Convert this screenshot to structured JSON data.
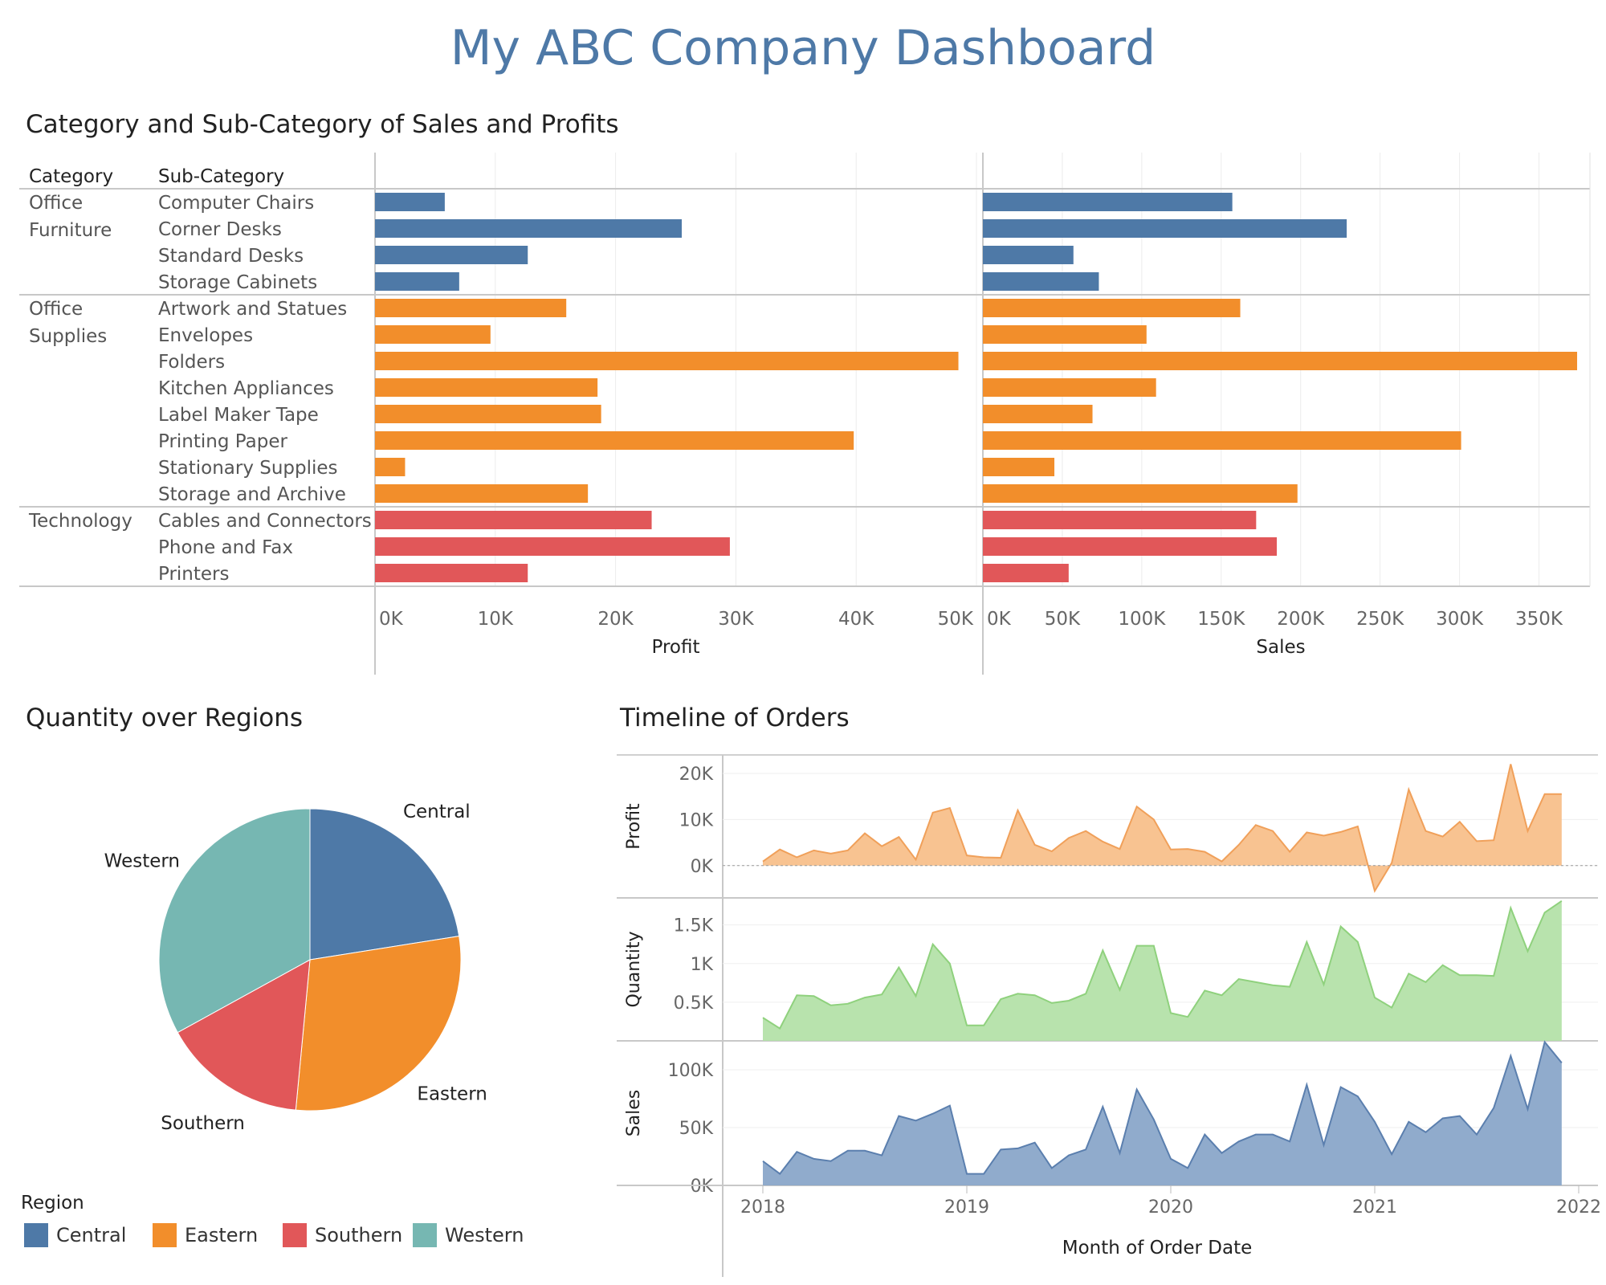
{
  "title": "My ABC Company Dashboard",
  "colors": {
    "title": "#4e79a7",
    "Office Furniture": "#4e79a7",
    "Office Supplies": "#f28e2b",
    "Technology": "#e15759",
    "Central": "#4e79a7",
    "Eastern": "#f28e2b",
    "Southern": "#e15759",
    "Western": "#76b7b2",
    "profit_area": "#f8c08b",
    "quantity_area": "#b4e2a9",
    "sales_area": "#8aa6c9"
  },
  "bars_section": {
    "title": "Category and Sub-Category of Sales and Profits",
    "col_category": "Category",
    "col_subcategory": "Sub-Category"
  },
  "pie_section": {
    "title": "Quantity over Regions"
  },
  "timeline_section": {
    "title": "Timeline of Orders"
  },
  "legend": {
    "title": "Region",
    "items": [
      "Central",
      "Eastern",
      "Southern",
      "Western"
    ]
  },
  "chart_data": [
    {
      "type": "bar",
      "name": "Category and Sub-Category of Sales and Profits",
      "groups": [
        {
          "category": "Office Furniture",
          "category_lines": [
            "Office",
            "Furniture"
          ],
          "items": [
            {
              "sub": "Computer Chairs",
              "profit": 5800,
              "sales": 157000
            },
            {
              "sub": "Corner Desks",
              "profit": 25500,
              "sales": 229000
            },
            {
              "sub": "Standard Desks",
              "profit": 12700,
              "sales": 57000
            },
            {
              "sub": "Storage Cabinets",
              "profit": 7000,
              "sales": 73000
            }
          ]
        },
        {
          "category": "Office Supplies",
          "category_lines": [
            "Office",
            "Supplies"
          ],
          "items": [
            {
              "sub": "Artwork and Statues",
              "profit": 15900,
              "sales": 162000
            },
            {
              "sub": "Envelopes",
              "profit": 9600,
              "sales": 103000
            },
            {
              "sub": "Folders",
              "profit": 48500,
              "sales": 374000
            },
            {
              "sub": "Kitchen Appliances",
              "profit": 18500,
              "sales": 109000
            },
            {
              "sub": "Label Maker Tape",
              "profit": 18800,
              "sales": 69000
            },
            {
              "sub": "Printing Paper",
              "profit": 39800,
              "sales": 301000
            },
            {
              "sub": "Stationary Supplies",
              "profit": 2500,
              "sales": 45000
            },
            {
              "sub": "Storage and Archive",
              "profit": 17700,
              "sales": 198000
            }
          ]
        },
        {
          "category": "Technology",
          "category_lines": [
            "Technology"
          ],
          "items": [
            {
              "sub": "Cables and Connectors",
              "profit": 23000,
              "sales": 172000
            },
            {
              "sub": "Phone and Fax",
              "profit": 29500,
              "sales": 185000
            },
            {
              "sub": "Printers",
              "profit": 12700,
              "sales": 54000
            }
          ]
        }
      ],
      "panels": [
        {
          "xlabel": "Profit",
          "xlim": [
            0,
            50000
          ],
          "ticks": [
            0,
            10000,
            20000,
            30000,
            40000,
            50000
          ],
          "tick_labels": [
            "0K",
            "10K",
            "20K",
            "30K",
            "40K",
            "50K"
          ]
        },
        {
          "xlabel": "Sales",
          "xlim": [
            0,
            375000
          ],
          "ticks": [
            0,
            50000,
            100000,
            150000,
            200000,
            250000,
            300000,
            350000
          ],
          "tick_labels": [
            "0K",
            "50K",
            "100K",
            "150K",
            "200K",
            "250K",
            "300K",
            "350K"
          ]
        }
      ]
    },
    {
      "type": "pie",
      "name": "Quantity over Regions",
      "slices": [
        {
          "label": "Central",
          "value": 22.5
        },
        {
          "label": "Eastern",
          "value": 29.0
        },
        {
          "label": "Southern",
          "value": 15.5
        },
        {
          "label": "Western",
          "value": 33.0
        }
      ]
    },
    {
      "type": "area",
      "name": "Timeline of Orders",
      "xlabel": "Month of Order Date",
      "x_tick_labels": [
        "2018",
        "2019",
        "2020",
        "2021",
        "2022"
      ],
      "x_range": [
        "2018-01",
        "2022-01"
      ],
      "months": [
        "2018-01",
        "2018-02",
        "2018-03",
        "2018-04",
        "2018-05",
        "2018-06",
        "2018-07",
        "2018-08",
        "2018-09",
        "2018-10",
        "2018-11",
        "2018-12",
        "2019-01",
        "2019-02",
        "2019-03",
        "2019-04",
        "2019-05",
        "2019-06",
        "2019-07",
        "2019-08",
        "2019-09",
        "2019-10",
        "2019-11",
        "2019-12",
        "2020-01",
        "2020-02",
        "2020-03",
        "2020-04",
        "2020-05",
        "2020-06",
        "2020-07",
        "2020-08",
        "2020-09",
        "2020-10",
        "2020-11",
        "2020-12",
        "2021-01",
        "2021-02",
        "2021-03",
        "2021-04",
        "2021-05",
        "2021-06",
        "2021-07",
        "2021-08",
        "2021-09",
        "2021-10",
        "2021-11",
        "2021-12"
      ],
      "series": [
        {
          "name": "Profit",
          "ylabel": "Profit",
          "ylim": [
            -7000,
            24000
          ],
          "ticks": [
            0,
            10000,
            20000
          ],
          "tick_labels": [
            "0K",
            "10K",
            "20K"
          ],
          "zero_line": true,
          "values": [
            900,
            3500,
            1800,
            3300,
            2600,
            3300,
            7000,
            4200,
            6200,
            1300,
            11500,
            12500,
            2200,
            1800,
            1700,
            12000,
            4500,
            3100,
            6000,
            7500,
            5200,
            3600,
            12800,
            10000,
            3500,
            3600,
            3000,
            900,
            4500,
            8800,
            7500,
            3000,
            7200,
            6500,
            7300,
            8500,
            -5500,
            600,
            16500,
            7500,
            6300,
            9500,
            5300,
            5500,
            22000,
            7500,
            15500,
            15500
          ]
        },
        {
          "name": "Quantity",
          "ylabel": "Quantity",
          "ylim": [
            0,
            1850
          ],
          "ticks": [
            500,
            1000,
            1500
          ],
          "tick_labels": [
            "0.5K",
            "1K",
            "1.5K"
          ],
          "values": [
            300,
            160,
            590,
            580,
            460,
            480,
            560,
            600,
            950,
            580,
            1250,
            1000,
            200,
            200,
            540,
            610,
            590,
            490,
            520,
            610,
            1170,
            660,
            1230,
            1230,
            360,
            310,
            650,
            590,
            800,
            760,
            720,
            700,
            1280,
            730,
            1480,
            1280,
            560,
            430,
            870,
            760,
            980,
            850,
            850,
            840,
            1720,
            1160,
            1660,
            1810
          ]
        },
        {
          "name": "Sales",
          "ylabel": "Sales",
          "ylim": [
            0,
            125000
          ],
          "ticks": [
            0,
            50000,
            100000
          ],
          "tick_labels": [
            "0K",
            "50K",
            "100K"
          ],
          "values": [
            21000,
            10000,
            29000,
            23000,
            21000,
            30000,
            30000,
            26000,
            60000,
            56000,
            62000,
            69000,
            10000,
            10000,
            31000,
            32000,
            37000,
            15000,
            26000,
            31000,
            68000,
            28000,
            83000,
            57000,
            23000,
            15000,
            44000,
            28000,
            38000,
            44000,
            44000,
            38000,
            87000,
            35000,
            85000,
            77000,
            55000,
            27000,
            55000,
            46000,
            58000,
            60000,
            44000,
            67000,
            112000,
            66000,
            124000,
            106000
          ]
        }
      ]
    }
  ]
}
